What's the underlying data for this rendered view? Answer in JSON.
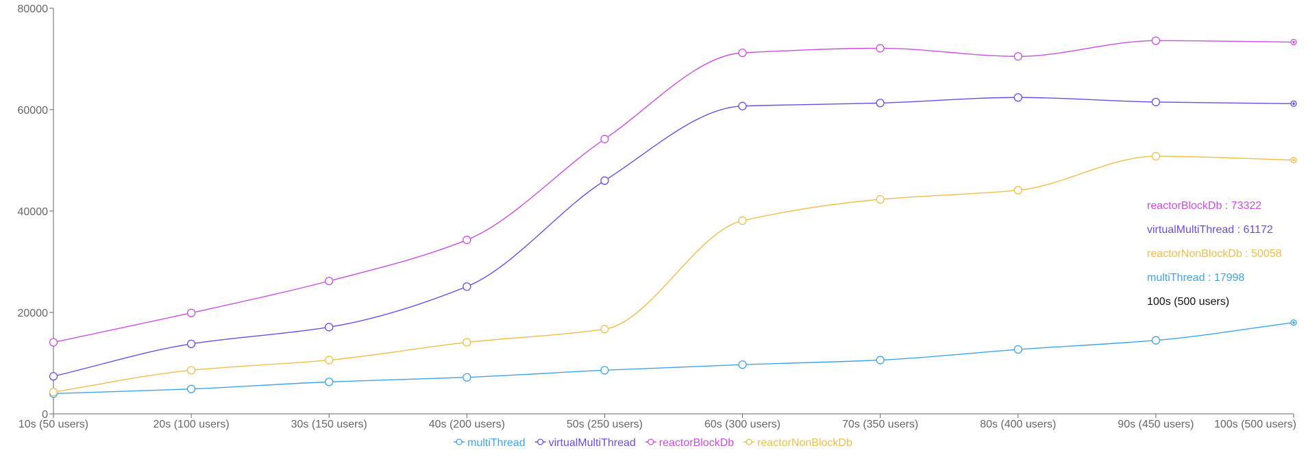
{
  "chart_data": {
    "type": "line",
    "categories": [
      "10s (50 users)",
      "20s (100 users)",
      "30s (150 users)",
      "40s (200 users)",
      "50s (250 users)",
      "60s (300 users)",
      "70s (350 users)",
      "80s (400 users)",
      "90s (450 users)",
      "100s (500 users)"
    ],
    "ylim": [
      0,
      80000
    ],
    "yticks": [
      "0",
      "20000",
      "40000",
      "60000",
      "80000"
    ],
    "grid": false,
    "legend": "bottom",
    "series": [
      {
        "name": "multiThread",
        "color": "#3ea3ec",
        "values": [
          4000,
          4900,
          6300,
          7200,
          8600,
          9700,
          10600,
          12700,
          14500,
          17998
        ]
      },
      {
        "name": "virtualMultiThread",
        "color": "#6b4ce6",
        "values": [
          7400,
          13800,
          17100,
          25100,
          46000,
          60700,
          61300,
          62400,
          61500,
          61172
        ]
      },
      {
        "name": "reactorBlockDb",
        "color": "#c94ee0",
        "values": [
          14100,
          19900,
          26200,
          34300,
          54200,
          71200,
          72100,
          70500,
          73600,
          73322
        ]
      },
      {
        "name": "reactorNonBlockDb",
        "color": "#efbd4a",
        "values": [
          4300,
          8600,
          10600,
          14100,
          16700,
          38100,
          42300,
          44100,
          50800,
          50058
        ]
      }
    ]
  },
  "tooltip": {
    "title": "100s (500 users)",
    "items": [
      {
        "text": "reactorBlockDb : 73322",
        "color": "#c94ee0"
      },
      {
        "text": "virtualMultiThread : 61172",
        "color": "#6b4ce6"
      },
      {
        "text": "reactorNonBlockDb : 50058",
        "color": "#efbd4a"
      },
      {
        "text": "multiThread : 17998",
        "color": "#3ea3ec"
      }
    ]
  }
}
